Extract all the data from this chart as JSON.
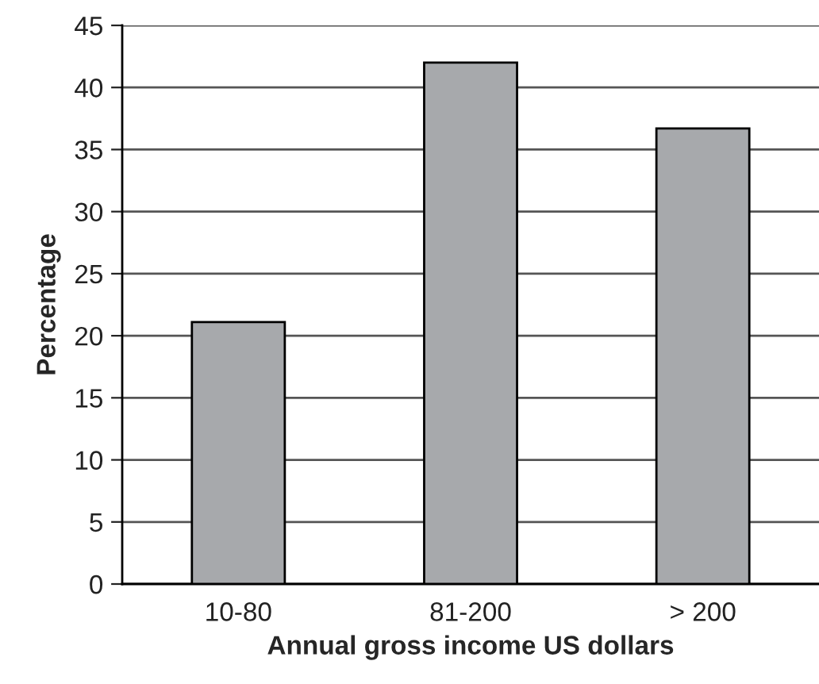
{
  "chart_data": {
    "type": "bar",
    "xlabel": "Annual gross income US dollars",
    "ylabel": "Percentage",
    "categories": [
      "10-80",
      "81-200",
      "> 200"
    ],
    "values": [
      21.1,
      42.0,
      36.7
    ],
    "color": "#a7a9ac",
    "ylim": [
      0,
      45
    ],
    "yticks": [
      0,
      5,
      10,
      15,
      20,
      25,
      30,
      35,
      40,
      45
    ],
    "grid": "y"
  }
}
